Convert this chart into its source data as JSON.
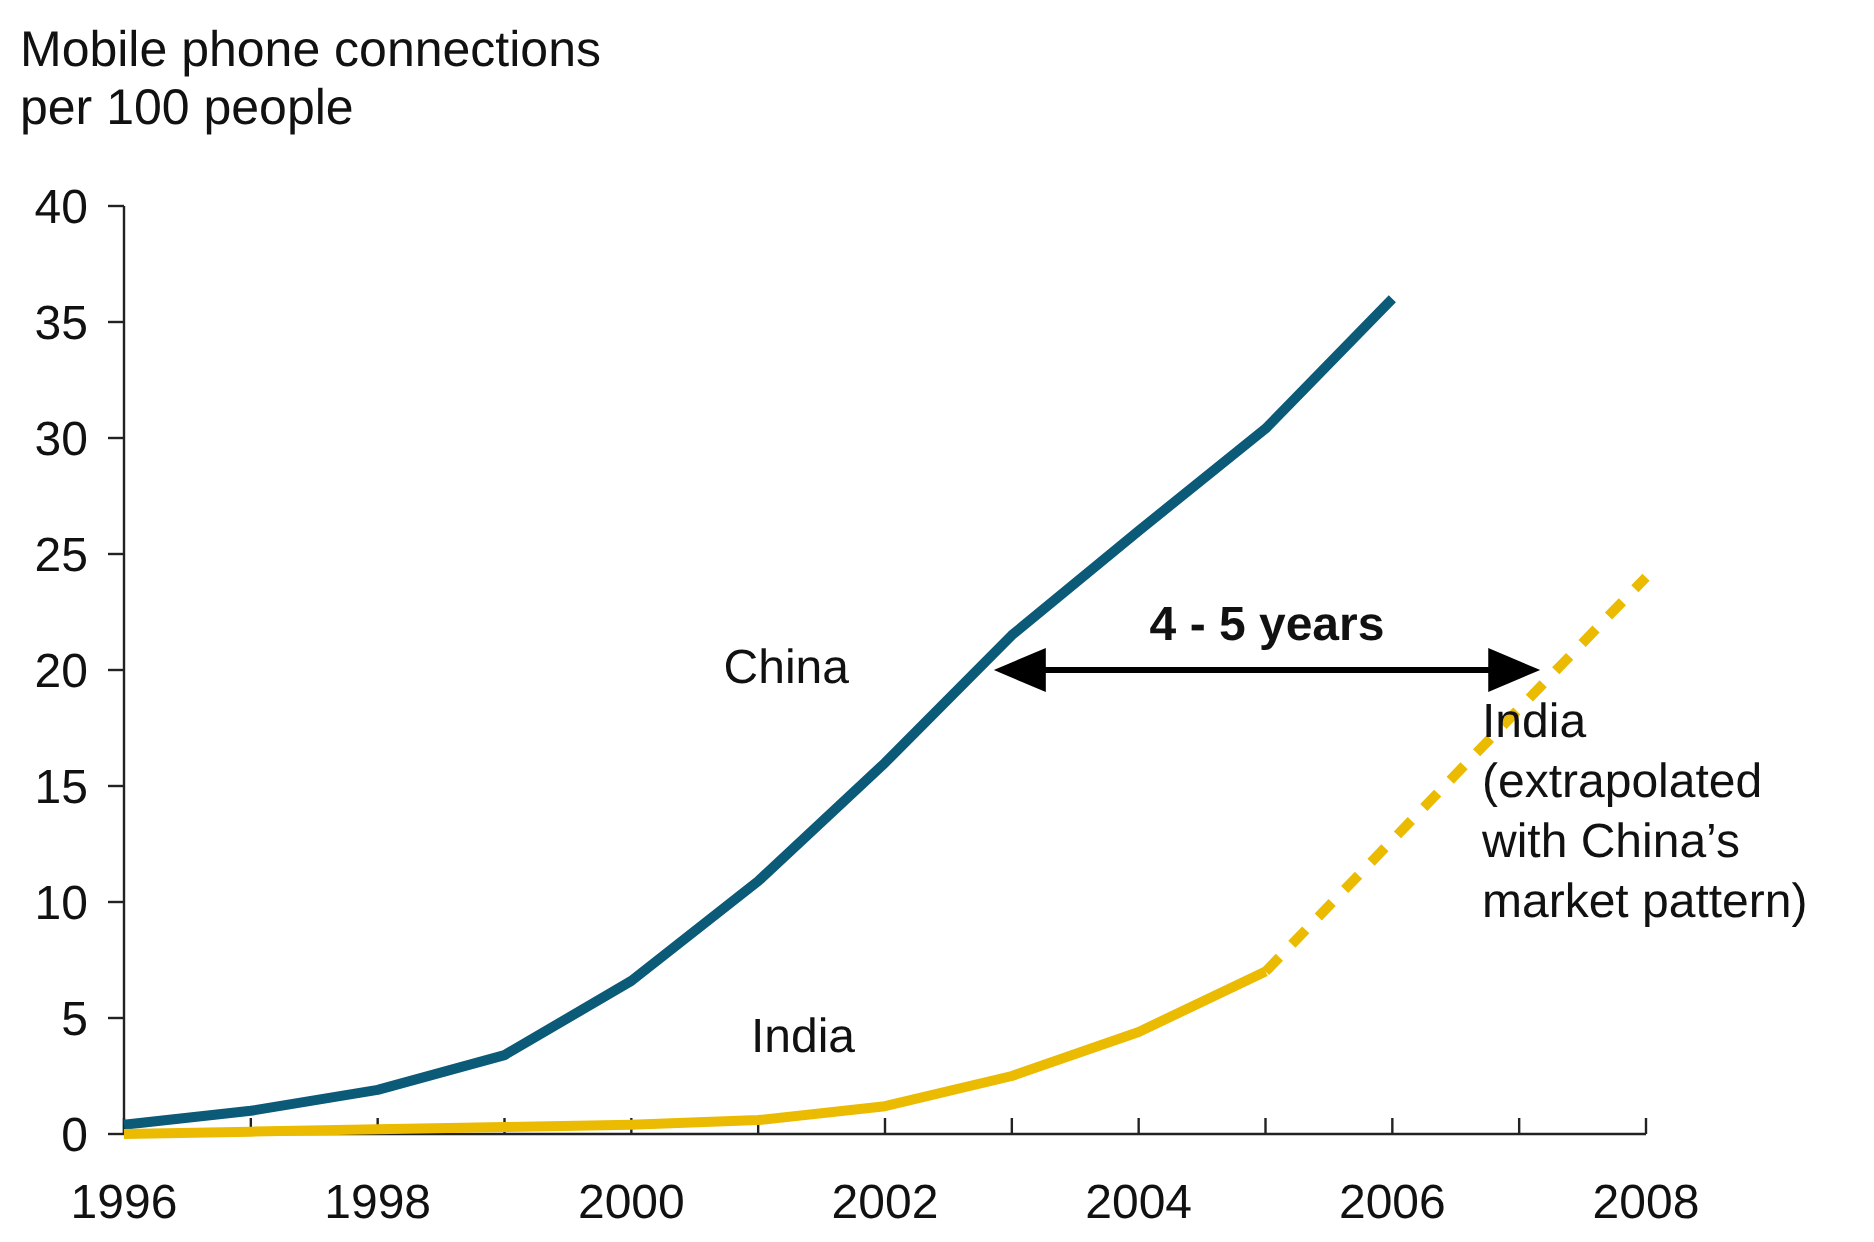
{
  "chart_data": {
    "type": "line",
    "ylabel": "Mobile phone connections per 100 people",
    "x": [
      1996,
      1997,
      1998,
      1999,
      2000,
      2001,
      2002,
      2003,
      2004,
      2005,
      2006
    ],
    "series": [
      {
        "name": "China",
        "color": "#0b5a78",
        "values": [
          0.4,
          1.0,
          1.9,
          3.4,
          6.6,
          10.9,
          16.0,
          21.5,
          26.0,
          30.4,
          36.0
        ]
      },
      {
        "name": "India",
        "color": "#eabb00",
        "x": [
          1996,
          1997,
          1998,
          1999,
          2000,
          2001,
          2002,
          2003,
          2004,
          2005
        ],
        "values": [
          0,
          0.1,
          0.2,
          0.3,
          0.4,
          0.6,
          1.2,
          2.5,
          4.4,
          7.0
        ]
      },
      {
        "name": "India (extrapolated with China’s market pattern)",
        "color": "#eabb00",
        "x": [
          2005,
          2008
        ],
        "values": [
          7.0,
          24.0
        ],
        "line_style": "dashed"
      }
    ],
    "annotations": [
      "4 - 5 years"
    ],
    "xlim": [
      1996,
      2008
    ],
    "xticks": [
      1996,
      {
        "value": 1997,
        "label": null
      },
      1998,
      {
        "value": 1999,
        "label": null
      },
      2000,
      {
        "value": 2001,
        "label": null
      },
      2002,
      {
        "value": 2003,
        "label": null
      },
      2004,
      {
        "value": 2005,
        "label": null
      },
      2006,
      {
        "value": 2007,
        "label": null
      },
      2008
    ],
    "ylim": [
      0,
      40
    ],
    "yticks": [
      0,
      5,
      10,
      15,
      20,
      25,
      30,
      35,
      40
    ],
    "grid": false,
    "line_style": "solid"
  }
}
